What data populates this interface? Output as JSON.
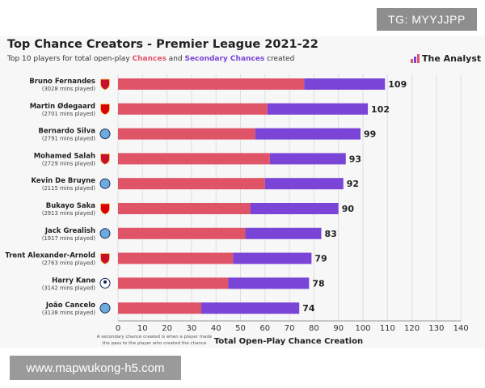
{
  "watermark_top": "TG: MYYJJPP",
  "watermark_bottom": "www.mapwukong-h5.com",
  "brand": "The Analyst",
  "subtitle": {
    "prefix": "Top 10 players for total open-play ",
    "chances": "Chances",
    "and": " and ",
    "secondary": "Secondary Chances",
    "suffix": " created"
  },
  "footnote": [
    "A secondary chance created is when a player made",
    "the pass to the player who created the chance"
  ],
  "chart_data": {
    "type": "bar",
    "orientation": "horizontal",
    "stacked": true,
    "title": "Top Chance Creators - Premier League 2021-22",
    "xlabel": "Total Open-Play Chance Creation",
    "ylabel": "",
    "xlim": [
      0,
      140
    ],
    "xticks": [
      0,
      10,
      20,
      30,
      40,
      50,
      60,
      70,
      80,
      90,
      100,
      110,
      120,
      130,
      140
    ],
    "colors": {
      "chances": "#e05468",
      "secondary": "#7a45d6"
    },
    "categories": [
      {
        "name": "Bruno Fernandes",
        "mins": "(3028 mins played)",
        "club": "Man Utd"
      },
      {
        "name": "Martin Ødegaard",
        "mins": "(2701 mins played)",
        "club": "Arsenal"
      },
      {
        "name": "Bernardo Silva",
        "mins": "(2791 mins played)",
        "club": "Man City"
      },
      {
        "name": "Mohamed Salah",
        "mins": "(2729 mins played)",
        "club": "Liverpool"
      },
      {
        "name": "Kevin De Bruyne",
        "mins": "(2115 mins played)",
        "club": "Man City"
      },
      {
        "name": "Bukayo Saka",
        "mins": "(2913 mins played)",
        "club": "Arsenal"
      },
      {
        "name": "Jack Grealish",
        "mins": "(1917 mins played)",
        "club": "Man City"
      },
      {
        "name": "Trent Alexander-Arnold",
        "mins": "(2763 mins played)",
        "club": "Liverpool"
      },
      {
        "name": "Harry Kane",
        "mins": "(3142 mins played)",
        "club": "Tottenham"
      },
      {
        "name": "João Cancelo",
        "mins": "(3138 mins played)",
        "club": "Man City"
      }
    ],
    "series": [
      {
        "name": "Chances",
        "values": [
          76,
          61,
          56,
          62,
          60,
          54,
          52,
          47,
          45,
          34
        ]
      },
      {
        "name": "Secondary Chances",
        "values": [
          33,
          41,
          43,
          31,
          32,
          36,
          31,
          32,
          33,
          40
        ]
      }
    ],
    "totals": [
      109,
      102,
      99,
      93,
      92,
      90,
      83,
      79,
      78,
      74
    ]
  },
  "club_badges": {
    "Man Utd": "#c8102e",
    "Arsenal": "#db0007",
    "Man City": "#6cabdd",
    "Liverpool": "#c8102e",
    "Tottenham": "#132257"
  }
}
